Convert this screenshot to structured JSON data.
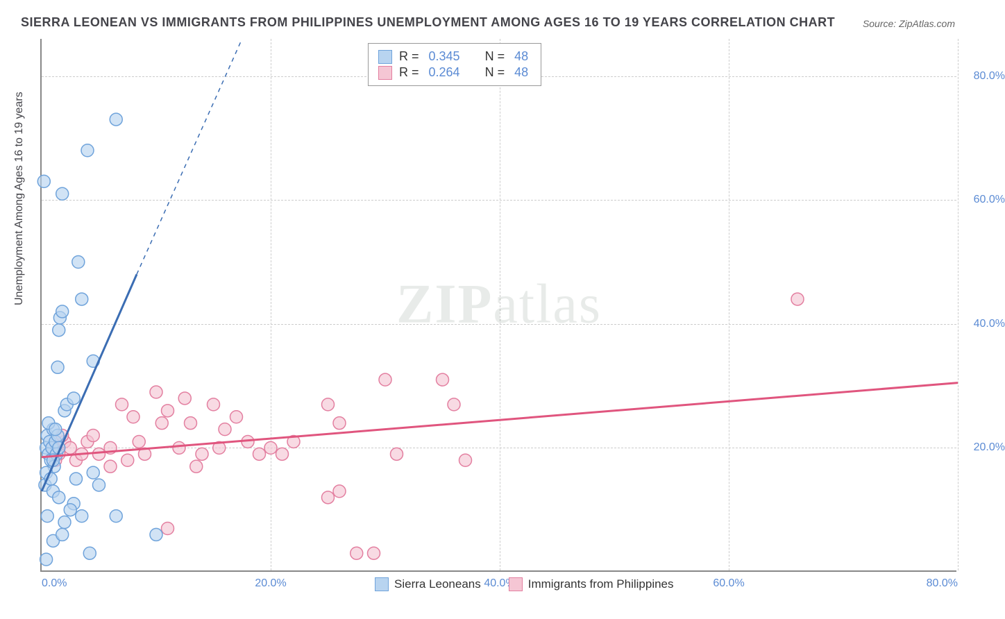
{
  "title": "SIERRA LEONEAN VS IMMIGRANTS FROM PHILIPPINES UNEMPLOYMENT AMONG AGES 16 TO 19 YEARS CORRELATION CHART",
  "source": "Source: ZipAtlas.com",
  "ylabel": "Unemployment Among Ages 16 to 19 years",
  "watermark_bold": "ZIP",
  "watermark_light": "atlas",
  "chart": {
    "type": "scatter",
    "xlim": [
      0,
      80
    ],
    "ylim": [
      0,
      86
    ],
    "xticks": [
      0,
      20,
      40,
      60,
      80
    ],
    "yticks": [
      20,
      40,
      60,
      80
    ],
    "xtick_labels": [
      "0.0%",
      "20.0%",
      "40.0%",
      "60.0%",
      "80.0%"
    ],
    "ytick_labels": [
      "20.0%",
      "40.0%",
      "60.0%",
      "80.0%"
    ],
    "grid_color": "#cccccc",
    "axis_color": "#888888",
    "tick_label_color": "#5b8bd4",
    "background_color": "#ffffff",
    "marker_radius": 9,
    "marker_stroke_width": 1.5,
    "line_width": 3
  },
  "series_a": {
    "name": "Sierra Leoneans",
    "fill_color": "#b8d4f0",
    "stroke_color": "#6fa3db",
    "line_color": "#3b6db3",
    "r_value": "0.345",
    "n_value": "48",
    "trend_solid": {
      "x1": 0,
      "y1": 13,
      "x2": 8.3,
      "y2": 48
    },
    "trend_dashed": {
      "x1": 8.3,
      "y1": 48,
      "x2": 17.5,
      "y2": 86
    },
    "points": [
      [
        0.3,
        14
      ],
      [
        0.4,
        20
      ],
      [
        0.5,
        22
      ],
      [
        0.6,
        19
      ],
      [
        0.7,
        21
      ],
      [
        0.8,
        18
      ],
      [
        0.9,
        20
      ],
      [
        1.0,
        23
      ],
      [
        1.1,
        17
      ],
      [
        1.2,
        21
      ],
      [
        1.3,
        19
      ],
      [
        1.4,
        22
      ],
      [
        1.5,
        20
      ],
      [
        0.4,
        16
      ],
      [
        0.6,
        24
      ],
      [
        0.8,
        15
      ],
      [
        1.0,
        18
      ],
      [
        1.2,
        23
      ],
      [
        0.2,
        63
      ],
      [
        1.8,
        61
      ],
      [
        4.0,
        68
      ],
      [
        6.5,
        73
      ],
      [
        1.5,
        39
      ],
      [
        1.6,
        41
      ],
      [
        1.8,
        42
      ],
      [
        3.5,
        44
      ],
      [
        3.2,
        50
      ],
      [
        1.4,
        33
      ],
      [
        4.5,
        34
      ],
      [
        2.0,
        26
      ],
      [
        2.2,
        27
      ],
      [
        2.8,
        28
      ],
      [
        1.0,
        13
      ],
      [
        1.5,
        12
      ],
      [
        2.8,
        11
      ],
      [
        3.0,
        15
      ],
      [
        4.5,
        16
      ],
      [
        5.0,
        14
      ],
      [
        0.5,
        9
      ],
      [
        2.0,
        8
      ],
      [
        2.5,
        10
      ],
      [
        3.5,
        9
      ],
      [
        6.5,
        9
      ],
      [
        0.4,
        2
      ],
      [
        4.2,
        3
      ],
      [
        10.0,
        6
      ],
      [
        1.0,
        5
      ],
      [
        1.8,
        6
      ]
    ]
  },
  "series_b": {
    "name": "Immigrants from Philippines",
    "fill_color": "#f5c6d4",
    "stroke_color": "#e37fa0",
    "line_color": "#e0557e",
    "r_value": "0.264",
    "n_value": "48",
    "trend_solid": {
      "x1": 0,
      "y1": 18.5,
      "x2": 80,
      "y2": 30.5
    },
    "points": [
      [
        1.0,
        20
      ],
      [
        1.5,
        19
      ],
      [
        2.0,
        21
      ],
      [
        2.5,
        20
      ],
      [
        3.0,
        18
      ],
      [
        3.5,
        19
      ],
      [
        4.0,
        21
      ],
      [
        1.2,
        18
      ],
      [
        5.0,
        19
      ],
      [
        6.0,
        20
      ],
      [
        7.0,
        27
      ],
      [
        8.0,
        25
      ],
      [
        9.0,
        19
      ],
      [
        10.0,
        29
      ],
      [
        10.5,
        24
      ],
      [
        11.0,
        26
      ],
      [
        12.0,
        20
      ],
      [
        12.5,
        28
      ],
      [
        13.0,
        24
      ],
      [
        14.0,
        19
      ],
      [
        15.0,
        27
      ],
      [
        15.5,
        20
      ],
      [
        16.0,
        23
      ],
      [
        17.0,
        25
      ],
      [
        18.0,
        21
      ],
      [
        19.0,
        19
      ],
      [
        20.0,
        20
      ],
      [
        21.0,
        19
      ],
      [
        25.0,
        27
      ],
      [
        26.0,
        24
      ],
      [
        30.0,
        31
      ],
      [
        31.0,
        19
      ],
      [
        35.0,
        31
      ],
      [
        36.0,
        27
      ],
      [
        37.0,
        18
      ],
      [
        25.0,
        12
      ],
      [
        26.0,
        13
      ],
      [
        11.0,
        7
      ],
      [
        27.5,
        3
      ],
      [
        29.0,
        3
      ],
      [
        66.0,
        44
      ],
      [
        6.0,
        17
      ],
      [
        7.5,
        18
      ],
      [
        4.5,
        22
      ],
      [
        8.5,
        21
      ],
      [
        13.5,
        17
      ],
      [
        22.0,
        21
      ],
      [
        1.8,
        22
      ]
    ]
  },
  "legend_top": {
    "r_label": "R =",
    "n_label": "N ="
  }
}
